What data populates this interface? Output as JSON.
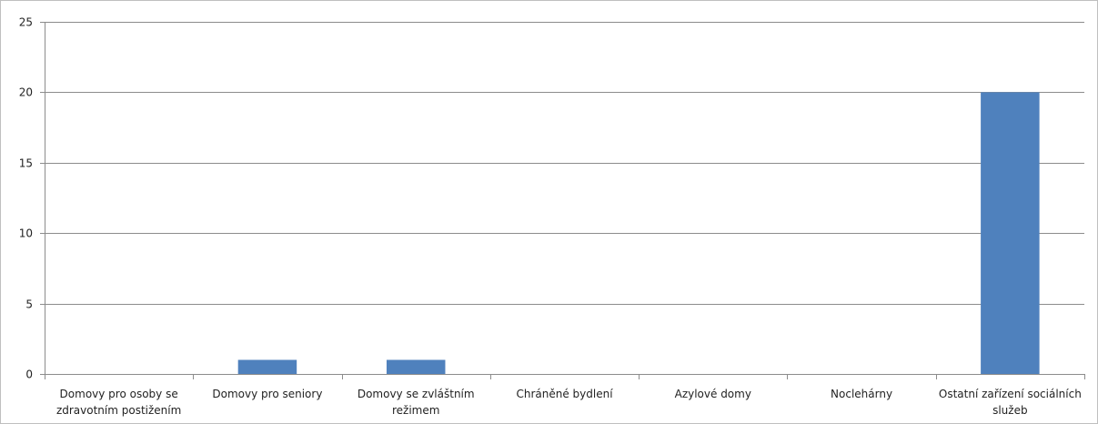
{
  "chart_data": {
    "type": "bar",
    "categories": [
      [
        "Domovy pro osoby se",
        "zdravotním postižením"
      ],
      [
        "Domovy pro seniory"
      ],
      [
        "Domovy se zvláštním",
        "režimem"
      ],
      [
        "Chráněné bydlení"
      ],
      [
        "Azylové domy"
      ],
      [
        "Noclehárny"
      ],
      [
        "Ostatní zařízení sociálních",
        "služeb"
      ]
    ],
    "values": [
      0,
      1,
      1,
      0,
      0,
      0,
      20
    ],
    "ylim": [
      0,
      25
    ],
    "yticks": [
      0,
      5,
      10,
      15,
      20,
      25
    ],
    "ytick_labels": [
      "0",
      "5",
      "10",
      "15",
      "20",
      "25"
    ],
    "grid": true,
    "legend": "none",
    "title": "",
    "xlabel": "",
    "ylabel": "",
    "colors": {
      "bar": "#4F81BD",
      "grid": "#8c8c8c",
      "axis": "#8c8c8c",
      "frame": "#bfbfbf"
    }
  }
}
